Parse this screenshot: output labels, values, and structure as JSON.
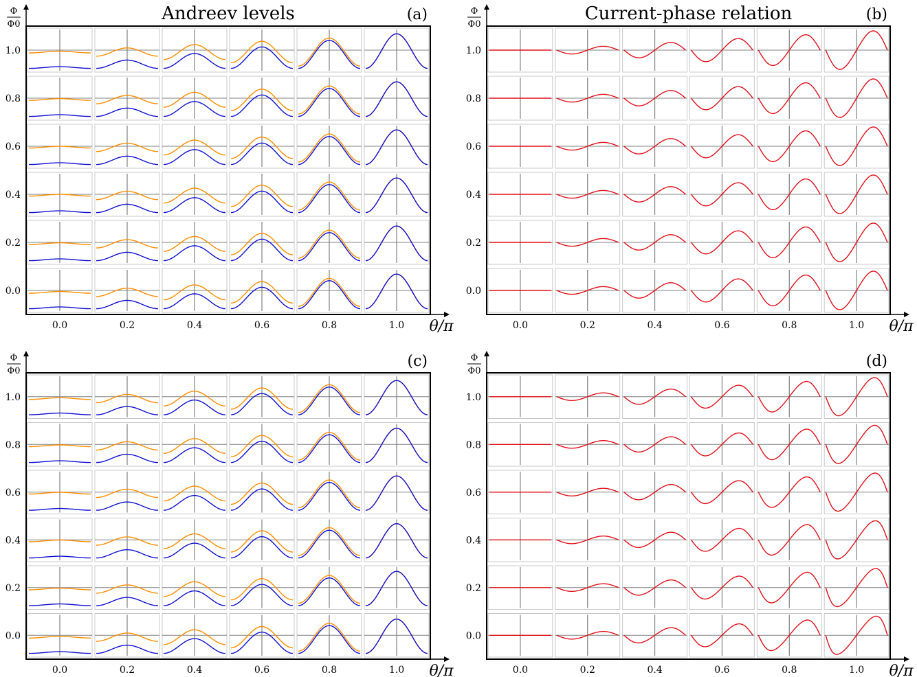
{
  "figure": {
    "y_axis_label_num": "Φ",
    "y_axis_label_den": "Φ0",
    "x_axis_label": "θ/π"
  },
  "chart_data": [
    {
      "type": "line",
      "panel": "(a)",
      "title": "Andreev levels",
      "xlabel": "θ/π",
      "ylabel": "Φ/Φ0",
      "x_ticks": [
        "0.0",
        "0.2",
        "0.4",
        "0.6",
        "0.8",
        "1.0"
      ],
      "y_ticks": [
        "0.0",
        "0.2",
        "0.4",
        "0.6",
        "0.8",
        "1.0"
      ],
      "x_values": [
        0.0,
        0.2,
        0.4,
        0.6,
        0.8,
        1.0
      ],
      "y_values": [
        0.0,
        0.2,
        0.4,
        0.6,
        0.8,
        1.0
      ],
      "grid": true,
      "plot_kind": "levels",
      "amplitude_scale": 0.18,
      "series": [
        {
          "color": "#1010d0",
          "role": "lower level"
        },
        {
          "color": "#ff8c00",
          "role": "upper level"
        }
      ]
    },
    {
      "type": "line",
      "panel": "(b)",
      "title": "Current-phase relation",
      "xlabel": "θ/π",
      "ylabel": "Φ/Φ0",
      "x_ticks": [
        "0.0",
        "0.2",
        "0.4",
        "0.6",
        "0.8",
        "1.0"
      ],
      "y_ticks": [
        "0.0",
        "0.2",
        "0.4",
        "0.6",
        "0.8",
        "1.0"
      ],
      "x_values": [
        0.0,
        0.2,
        0.4,
        0.6,
        0.8,
        1.0
      ],
      "y_values": [
        0.0,
        0.2,
        0.4,
        0.6,
        0.8,
        1.0
      ],
      "grid": true,
      "plot_kind": "current",
      "skewness": 0.15,
      "series": [
        {
          "color": "#e0101a",
          "role": "current"
        }
      ]
    },
    {
      "type": "line",
      "panel": "(c)",
      "title": "",
      "xlabel": "θ/π",
      "ylabel": "Φ/Φ0",
      "x_ticks": [
        "0.0",
        "0.2",
        "0.4",
        "0.6",
        "0.8",
        "1.0"
      ],
      "y_ticks": [
        "0.0",
        "0.2",
        "0.4",
        "0.6",
        "0.8",
        "1.0"
      ],
      "x_values": [
        0.0,
        0.2,
        0.4,
        0.6,
        0.8,
        1.0
      ],
      "y_values": [
        0.0,
        0.2,
        0.4,
        0.6,
        0.8,
        1.0
      ],
      "grid": true,
      "plot_kind": "levels",
      "amplitude_scale": 1.0,
      "series": [
        {
          "color": "#1010d0",
          "role": "lower level"
        },
        {
          "color": "#ff8c00",
          "role": "upper level"
        }
      ]
    },
    {
      "type": "line",
      "panel": "(d)",
      "title": "",
      "xlabel": "θ/π",
      "ylabel": "Φ/Φ0",
      "x_ticks": [
        "0.0",
        "0.2",
        "0.4",
        "0.6",
        "0.8",
        "1.0"
      ],
      "y_ticks": [
        "0.0",
        "0.2",
        "0.4",
        "0.6",
        "0.8",
        "1.0"
      ],
      "x_values": [
        0.0,
        0.2,
        0.4,
        0.6,
        0.8,
        1.0
      ],
      "y_values": [
        0.0,
        0.2,
        0.4,
        0.6,
        0.8,
        1.0
      ],
      "grid": true,
      "plot_kind": "current",
      "skewness": 0.75,
      "series": [
        {
          "color": "#e0101a",
          "role": "current"
        }
      ]
    }
  ]
}
